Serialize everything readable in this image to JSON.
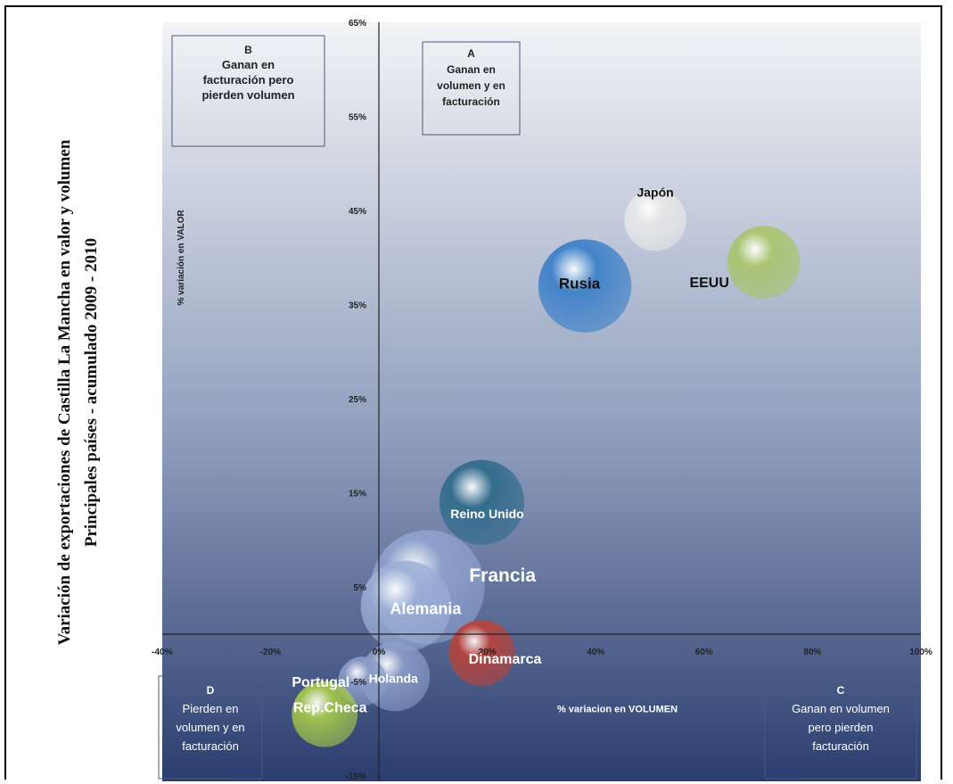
{
  "side_title": {
    "line1": "Variación de exportaciones de Castilla La Mancha en valor y volumen",
    "line2": "Principales países - acumulado 2009 - 2010"
  },
  "colors": {
    "plot_top": "#f2f4f6",
    "plot_bottom": "#2a3d6e",
    "axis": "#222222"
  },
  "chart_data": {
    "type": "scatter",
    "subtype": "bubble",
    "title": "",
    "xlabel": "% variacion en VOLUMEN",
    "ylabel": "% variación en VALOR",
    "xlim": [
      -40,
      100
    ],
    "ylim": [
      -15,
      65
    ],
    "x_ticks": [
      -40,
      -20,
      0,
      20,
      40,
      60,
      80,
      100
    ],
    "x_tick_labels": [
      "-40%",
      "-20%",
      "0%",
      "20%",
      "40%",
      "60%",
      "80%",
      "100%"
    ],
    "y_ticks": [
      -15,
      -5,
      5,
      15,
      25,
      35,
      45,
      55,
      65
    ],
    "y_tick_labels": [
      "-15%",
      "-5%",
      "5%",
      "15%",
      "25%",
      "35%",
      "45%",
      "55%",
      "65%"
    ],
    "grid": false,
    "legend": "none",
    "points": [
      {
        "label": "Japón",
        "x": 51,
        "y": 44,
        "size": 8,
        "color": "#e8e8e8",
        "label_color": "#111111"
      },
      {
        "label": "Rusia",
        "x": 38,
        "y": 37,
        "size": 18,
        "color": "#3a7ec8",
        "label_color": "#111111"
      },
      {
        "label": "EEUU",
        "x": 71,
        "y": 39.5,
        "size": 11,
        "color": "#a8c46a",
        "label_color": "#111111"
      },
      {
        "label": "Reino Unido",
        "x": 19,
        "y": 14,
        "size": 15,
        "color": "#2e6a8a",
        "label_color": "#ffffff"
      },
      {
        "label": "Francia",
        "x": 9,
        "y": 5,
        "size": 27,
        "color": "#8fa3cf",
        "label_color": "#ffffff"
      },
      {
        "label": "Alemania",
        "x": 5,
        "y": 3,
        "size": 17,
        "color": "#9aaed6",
        "label_color": "#ffffff"
      },
      {
        "label": "Dinamarca",
        "x": 19,
        "y": -2,
        "size": 9,
        "color": "#b8433a",
        "label_color": "#ffffff"
      },
      {
        "label": "Holanda",
        "x": 3,
        "y": -4.5,
        "size": 10,
        "color": "#8a9cc8",
        "label_color": "#ffffff"
      },
      {
        "label": "Portugal",
        "x": -3,
        "y": -5,
        "size": 5,
        "color": "#8a9cc8",
        "label_color": "#ffffff"
      },
      {
        "label": "Rep.Checa",
        "x": -10,
        "y": -8.5,
        "size": 9,
        "color": "#a6c94a",
        "label_color": "#ffffff"
      }
    ],
    "quadrant_boxes": [
      {
        "id": "B",
        "lines": [
          "B",
          "Ganan en",
          "facturación pero",
          "pierden volumen"
        ]
      },
      {
        "id": "A",
        "lines": [
          "A",
          "Ganan en",
          "volumen y en",
          "facturación"
        ]
      },
      {
        "id": "D",
        "lines": [
          "D",
          "Pierden en",
          "volumen y en",
          "facturación"
        ]
      },
      {
        "id": "C",
        "lines": [
          "C",
          "Ganan en volumen",
          "pero pierden",
          "facturación"
        ]
      }
    ]
  }
}
